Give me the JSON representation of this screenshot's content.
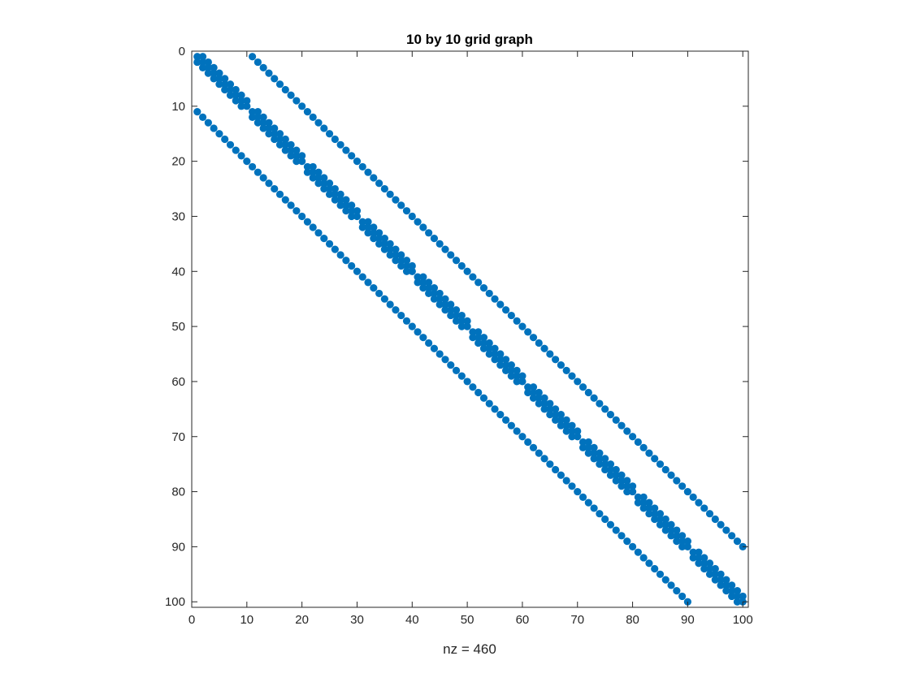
{
  "chart_data": {
    "type": "scatter",
    "title": "10 by 10 grid graph",
    "xlabel": "nz = 460",
    "ylabel": "",
    "grid_size": 10,
    "n": 100,
    "nz": 460,
    "xlim": [
      0,
      101
    ],
    "ylim": [
      0,
      101
    ],
    "y_reversed": true,
    "xticks": [
      0,
      10,
      20,
      30,
      40,
      50,
      60,
      70,
      80,
      90,
      100
    ],
    "yticks": [
      0,
      10,
      20,
      30,
      40,
      50,
      60,
      70,
      80,
      90,
      100
    ],
    "marker_color": "#0072BD",
    "diagonals": [
      {
        "offset": 0,
        "description": "main diagonal, all 100 entries"
      },
      {
        "offset": 1,
        "description": "±1 off-diagonals within each block of 10"
      },
      {
        "offset": 10,
        "description": "±10 off-diagonals"
      }
    ],
    "grid": false,
    "box": true
  }
}
